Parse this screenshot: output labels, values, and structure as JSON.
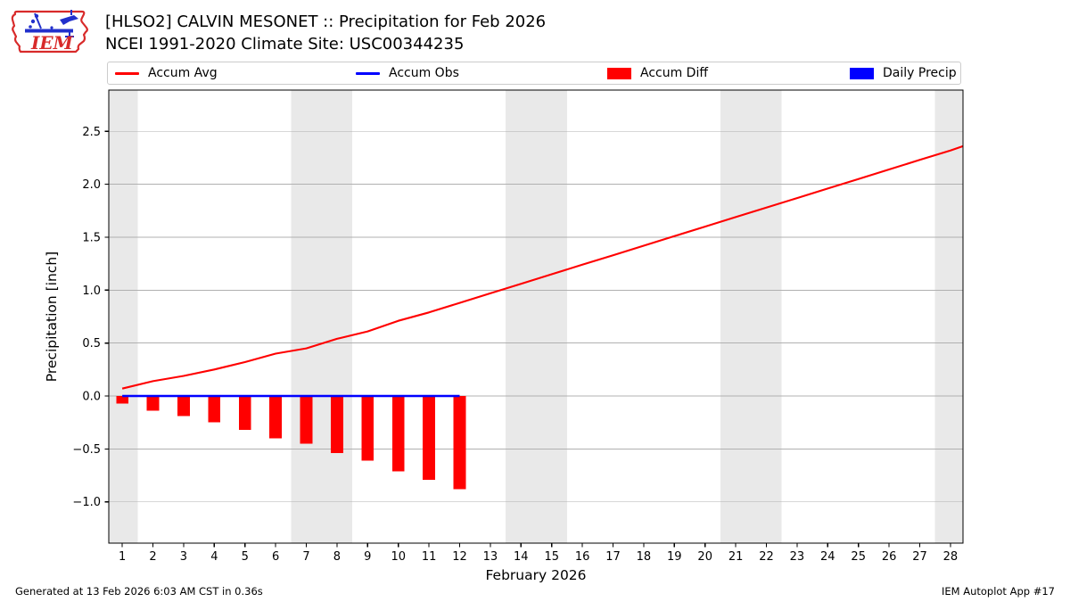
{
  "header": {
    "title_line1": "[HLSO2] CALVIN MESONET :: Precipitation for Feb 2026",
    "title_line2": "NCEI 1991-2020 Climate Site: USC00344235",
    "logo_text": "IEM"
  },
  "legend": [
    {
      "label": "Accum Avg",
      "swatch": "line",
      "color": "#ff0000"
    },
    {
      "label": "Accum Obs",
      "swatch": "line",
      "color": "#0000ff"
    },
    {
      "label": "Accum Diff",
      "swatch": "rect",
      "color": "#ff0000"
    },
    {
      "label": "Daily Precip",
      "swatch": "rect",
      "color": "#0000ff"
    }
  ],
  "footer": {
    "left": "Generated at 13 Feb 2026 6:03 AM CST in 0.36s",
    "right": "IEM Autoplot App #17"
  },
  "chart_data": {
    "type": "line+bar",
    "xlabel": "February 2026",
    "ylabel": "Precipitation [inch]",
    "xlim": [
      0.56,
      28.41
    ],
    "ylim": [
      -1.39,
      2.89
    ],
    "grid": "horizontal-only",
    "xticks": [
      1,
      2,
      3,
      4,
      5,
      6,
      7,
      8,
      9,
      10,
      11,
      12,
      13,
      14,
      15,
      16,
      17,
      18,
      19,
      20,
      21,
      22,
      23,
      24,
      25,
      26,
      27,
      28
    ],
    "yticks": [
      {
        "value": -1.0,
        "label": "−1.0"
      },
      {
        "value": -0.5,
        "label": "−0.5"
      },
      {
        "value": 0.0,
        "label": "0.0"
      },
      {
        "value": 0.5,
        "label": "0.5"
      },
      {
        "value": 1.0,
        "label": "1.0"
      },
      {
        "value": 1.5,
        "label": "1.5"
      },
      {
        "value": 2.0,
        "label": "2.0"
      },
      {
        "value": 2.5,
        "label": "2.5"
      }
    ],
    "weekend_bands": [
      [
        0.56,
        1.5
      ],
      [
        6.5,
        8.5
      ],
      [
        13.5,
        15.5
      ],
      [
        20.5,
        22.5
      ],
      [
        27.5,
        28.41
      ]
    ],
    "colors": {
      "accum_avg": "#ff0000",
      "accum_obs": "#0000ff",
      "accum_diff": "#ff0000",
      "daily_precip": "#0000ff",
      "weekend_band": "#e9e9e9",
      "gridline": "#b0b0b0",
      "frame": "#000000"
    },
    "series": [
      {
        "name": "Accum Avg",
        "type": "line",
        "color": "#ff0000",
        "x": [
          1,
          2,
          3,
          4,
          5,
          6,
          7,
          8,
          9,
          10,
          11,
          12,
          13,
          14,
          15,
          16,
          17,
          18,
          19,
          20,
          21,
          22,
          23,
          24,
          25,
          26,
          27,
          28,
          28.41
        ],
        "values": [
          0.07,
          0.14,
          0.19,
          0.25,
          0.32,
          0.4,
          0.45,
          0.54,
          0.61,
          0.71,
          0.79,
          0.88,
          0.97,
          1.06,
          1.15,
          1.24,
          1.33,
          1.42,
          1.51,
          1.6,
          1.69,
          1.78,
          1.87,
          1.96,
          2.05,
          2.14,
          2.23,
          2.32,
          2.36
        ]
      },
      {
        "name": "Accum Obs",
        "type": "line",
        "color": "#0000ff",
        "x": [
          1,
          12
        ],
        "values": [
          0.0,
          0.0
        ]
      },
      {
        "name": "Accum Diff",
        "type": "bar",
        "color": "#ff0000",
        "bar_width_days": 0.4,
        "x": [
          1,
          2,
          3,
          4,
          5,
          6,
          7,
          8,
          9,
          10,
          11,
          12
        ],
        "values": [
          -0.07,
          -0.14,
          -0.19,
          -0.25,
          -0.32,
          -0.4,
          -0.45,
          -0.54,
          -0.61,
          -0.71,
          -0.79,
          -0.88
        ]
      },
      {
        "name": "Daily Precip",
        "type": "bar",
        "color": "#0000ff",
        "bar_width_days": 0.4,
        "x": [],
        "values": []
      }
    ]
  }
}
